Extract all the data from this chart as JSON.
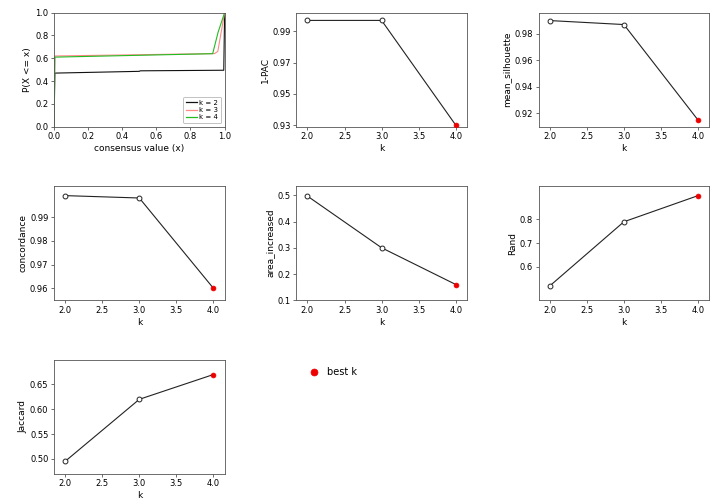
{
  "pac": {
    "k": [
      2.0,
      3.0,
      4.0
    ],
    "y": [
      0.997,
      0.997,
      0.93
    ],
    "best_k": 4,
    "ylim": [
      0.929,
      1.002
    ],
    "yticks": [
      0.93,
      0.95,
      0.97,
      0.99
    ],
    "ylabel": "1-PAC"
  },
  "silhouette": {
    "k": [
      2.0,
      3.0,
      4.0
    ],
    "y": [
      0.99,
      0.987,
      0.915
    ],
    "best_k": 4,
    "ylim": [
      0.91,
      0.996
    ],
    "yticks": [
      0.92,
      0.94,
      0.96,
      0.98
    ],
    "ylabel": "mean_silhouette"
  },
  "concordance": {
    "k": [
      2.0,
      3.0,
      4.0
    ],
    "y": [
      0.999,
      0.998,
      0.96
    ],
    "best_k": 4,
    "ylim": [
      0.955,
      1.003
    ],
    "yticks": [
      0.96,
      0.97,
      0.98,
      0.99
    ],
    "ylabel": "concordance"
  },
  "area_increased": {
    "k": [
      2.0,
      3.0,
      4.0
    ],
    "y": [
      0.497,
      0.3,
      0.16
    ],
    "best_k": 4,
    "ylim": [
      0.1,
      0.535
    ],
    "yticks": [
      0.1,
      0.2,
      0.3,
      0.4,
      0.5
    ],
    "ylabel": "area_increased"
  },
  "rand": {
    "k": [
      2.0,
      3.0,
      4.0
    ],
    "y": [
      0.52,
      0.79,
      0.9
    ],
    "best_k": 4,
    "ylim": [
      0.46,
      0.94
    ],
    "yticks": [
      0.6,
      0.7,
      0.8
    ],
    "ylabel": "Rand"
  },
  "jaccard": {
    "k": [
      2.0,
      3.0,
      4.0
    ],
    "y": [
      0.495,
      0.62,
      0.67
    ],
    "best_k": 4,
    "ylim": [
      0.47,
      0.7
    ],
    "yticks": [
      0.5,
      0.55,
      0.6,
      0.65
    ],
    "ylabel": "Jaccard"
  },
  "xlim": [
    1.85,
    4.15
  ],
  "xticks": [
    2.0,
    2.5,
    3.0,
    3.5,
    4.0
  ],
  "xlabel": "k",
  "bg_color": "#ffffff",
  "line_color": "#222222",
  "best_dot_color": "#ee0000",
  "dot_size": 3.5,
  "font_size": 6.5,
  "tick_size": 6
}
